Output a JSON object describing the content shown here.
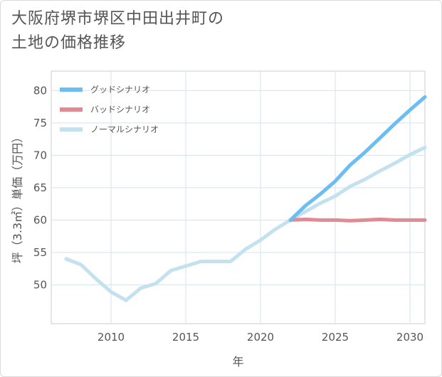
{
  "title": "大阪府堺市堺区中田出井町の\n土地の価格推移",
  "chart_data": {
    "type": "line",
    "xlabel": "年",
    "ylabel": "坪（3.3㎡）単価（万円）",
    "xlim": [
      2006,
      2031
    ],
    "ylim": [
      44,
      83
    ],
    "x_ticks": [
      2010,
      2015,
      2020,
      2025,
      2030
    ],
    "y_ticks": [
      50,
      55,
      60,
      65,
      70,
      75,
      80
    ],
    "grid": true,
    "legend_position": "top-left",
    "series": [
      {
        "name": "グッドシナリオ",
        "color": "#6cbdf0",
        "x": [
          2022,
          2023,
          2024,
          2025,
          2026,
          2027,
          2028,
          2029,
          2030,
          2031
        ],
        "values": [
          60.0,
          62.2,
          64.0,
          66.0,
          68.5,
          70.5,
          72.7,
          74.9,
          77.0,
          79.0
        ]
      },
      {
        "name": "バッドシナリオ",
        "color": "#e08a94",
        "x": [
          2022,
          2023,
          2024,
          2025,
          2026,
          2027,
          2028,
          2029,
          2030,
          2031
        ],
        "values": [
          60.0,
          60.1,
          60.0,
          60.0,
          59.9,
          60.0,
          60.1,
          60.0,
          60.0,
          60.0
        ]
      },
      {
        "name": "ノーマルシナリオ",
        "color": "#c3e1ee",
        "x": [
          2007,
          2008,
          2009,
          2010,
          2011,
          2012,
          2013,
          2014,
          2015,
          2016,
          2017,
          2018,
          2019,
          2020,
          2021,
          2022,
          2023,
          2024,
          2025,
          2026,
          2027,
          2028,
          2029,
          2030,
          2031
        ],
        "values": [
          54.0,
          53.1,
          50.9,
          48.9,
          47.6,
          49.5,
          50.2,
          52.2,
          52.9,
          53.6,
          53.6,
          53.6,
          55.5,
          56.9,
          58.6,
          60.0,
          61.3,
          62.6,
          63.7,
          65.2,
          66.3,
          67.6,
          68.8,
          70.1,
          71.2
        ]
      }
    ]
  }
}
